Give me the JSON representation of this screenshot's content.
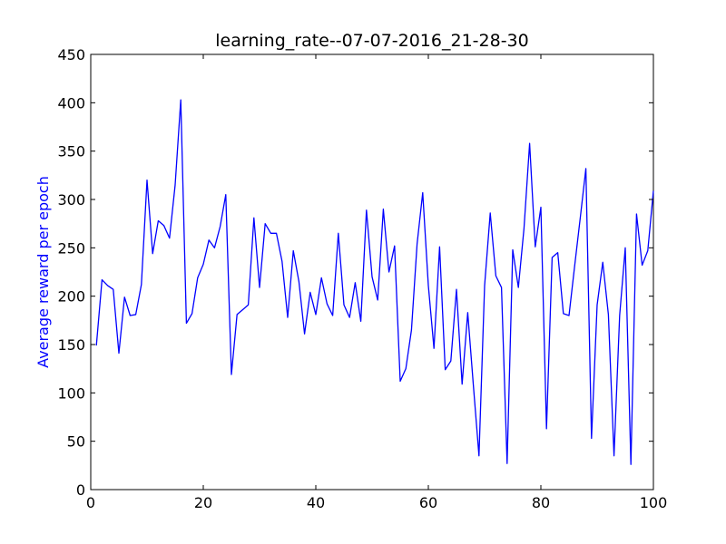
{
  "chart_data": {
    "type": "line",
    "title": "learning_rate--07-07-2016_21-28-30",
    "xlabel": "",
    "ylabel": "Average reward per epoch",
    "xlim": [
      0,
      100
    ],
    "ylim": [
      0,
      450
    ],
    "xticks": [
      0,
      20,
      40,
      60,
      80,
      100
    ],
    "yticks": [
      0,
      50,
      100,
      150,
      200,
      250,
      300,
      350,
      400,
      450
    ],
    "grid": false,
    "colors": {
      "line": "#0000ff",
      "ylabel": "#0000ff",
      "axes": "#000000"
    },
    "series": [
      {
        "x": [
          1,
          2,
          3,
          4,
          5,
          6,
          7,
          8,
          9,
          10,
          11,
          12,
          13,
          14,
          15,
          16,
          17,
          18,
          19,
          20,
          21,
          22,
          23,
          24,
          25,
          26,
          27,
          28,
          29,
          30,
          31,
          32,
          33,
          34,
          35,
          36,
          37,
          38,
          39,
          40,
          41,
          42,
          43,
          44,
          45,
          46,
          47,
          48,
          49,
          50,
          51,
          52,
          53,
          54,
          55,
          56,
          57,
          58,
          59,
          60,
          61,
          62,
          63,
          64,
          65,
          66,
          67,
          68,
          69,
          70,
          71,
          72,
          73,
          74,
          75,
          76,
          77,
          78,
          79,
          80,
          81,
          82,
          83,
          84,
          85,
          86,
          87,
          88,
          89,
          90,
          91,
          92,
          93,
          94,
          95,
          96,
          97,
          98,
          99,
          100
        ],
        "y": [
          149,
          217,
          211,
          207,
          141,
          199,
          180,
          181,
          212,
          320,
          244,
          278,
          273,
          260,
          315,
          403,
          172,
          182,
          219,
          233,
          258,
          250,
          272,
          305,
          119,
          181,
          186,
          191,
          281,
          209,
          275,
          265,
          265,
          236,
          178,
          247,
          215,
          161,
          204,
          181,
          219,
          192,
          180,
          265,
          191,
          178,
          214,
          174,
          289,
          220,
          196,
          290,
          225,
          252,
          112,
          125,
          165,
          254,
          307,
          211,
          146,
          251,
          124,
          133,
          207,
          109,
          183,
          108,
          35,
          211,
          286,
          221,
          209,
          27,
          248,
          209,
          270,
          358,
          251,
          292,
          63,
          240,
          245,
          182,
          180,
          231,
          281,
          332,
          53,
          191,
          235,
          181,
          35,
          180,
          250,
          26,
          285,
          232,
          247,
          309
        ]
      }
    ]
  }
}
